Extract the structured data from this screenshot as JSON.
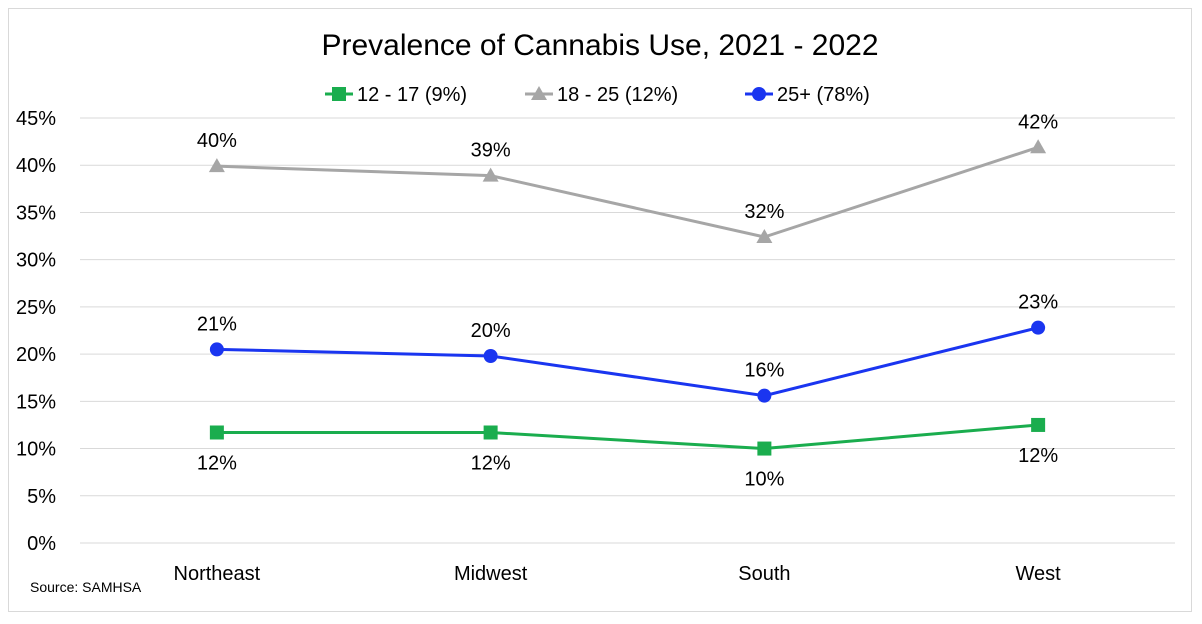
{
  "chart_data": {
    "type": "line",
    "title": "Prevalence of Cannabis Use, 2021 - 2022",
    "categories": [
      "Northeast",
      "Midwest",
      "South",
      "West"
    ],
    "series": [
      {
        "name": "12 - 17 (9%)",
        "values": [
          11.7,
          11.7,
          10.0,
          12.5
        ],
        "labels": [
          "12%",
          "12%",
          "10%",
          "12%"
        ],
        "color": "#1aad4e",
        "marker": "square",
        "label_position": "below"
      },
      {
        "name": "18 - 25 (12%)",
        "values": [
          39.9,
          38.9,
          32.4,
          41.9
        ],
        "labels": [
          "40%",
          "39%",
          "32%",
          "42%"
        ],
        "color": "#a6a6a6",
        "marker": "triangle",
        "label_position": "above"
      },
      {
        "name": "25+ (78%)",
        "values": [
          20.5,
          19.8,
          15.6,
          22.8
        ],
        "labels": [
          "21%",
          "20%",
          "16%",
          "23%"
        ],
        "color": "#1a35f0",
        "marker": "circle",
        "label_position": "above"
      }
    ],
    "ylim": [
      0,
      45
    ],
    "y_ticks": [
      "0%",
      "5%",
      "10%",
      "15%",
      "20%",
      "25%",
      "30%",
      "35%",
      "40%",
      "45%"
    ],
    "xlabel": "",
    "ylabel": "",
    "grid": true,
    "legend_position": "top"
  },
  "source": "Source: SAMHSA"
}
